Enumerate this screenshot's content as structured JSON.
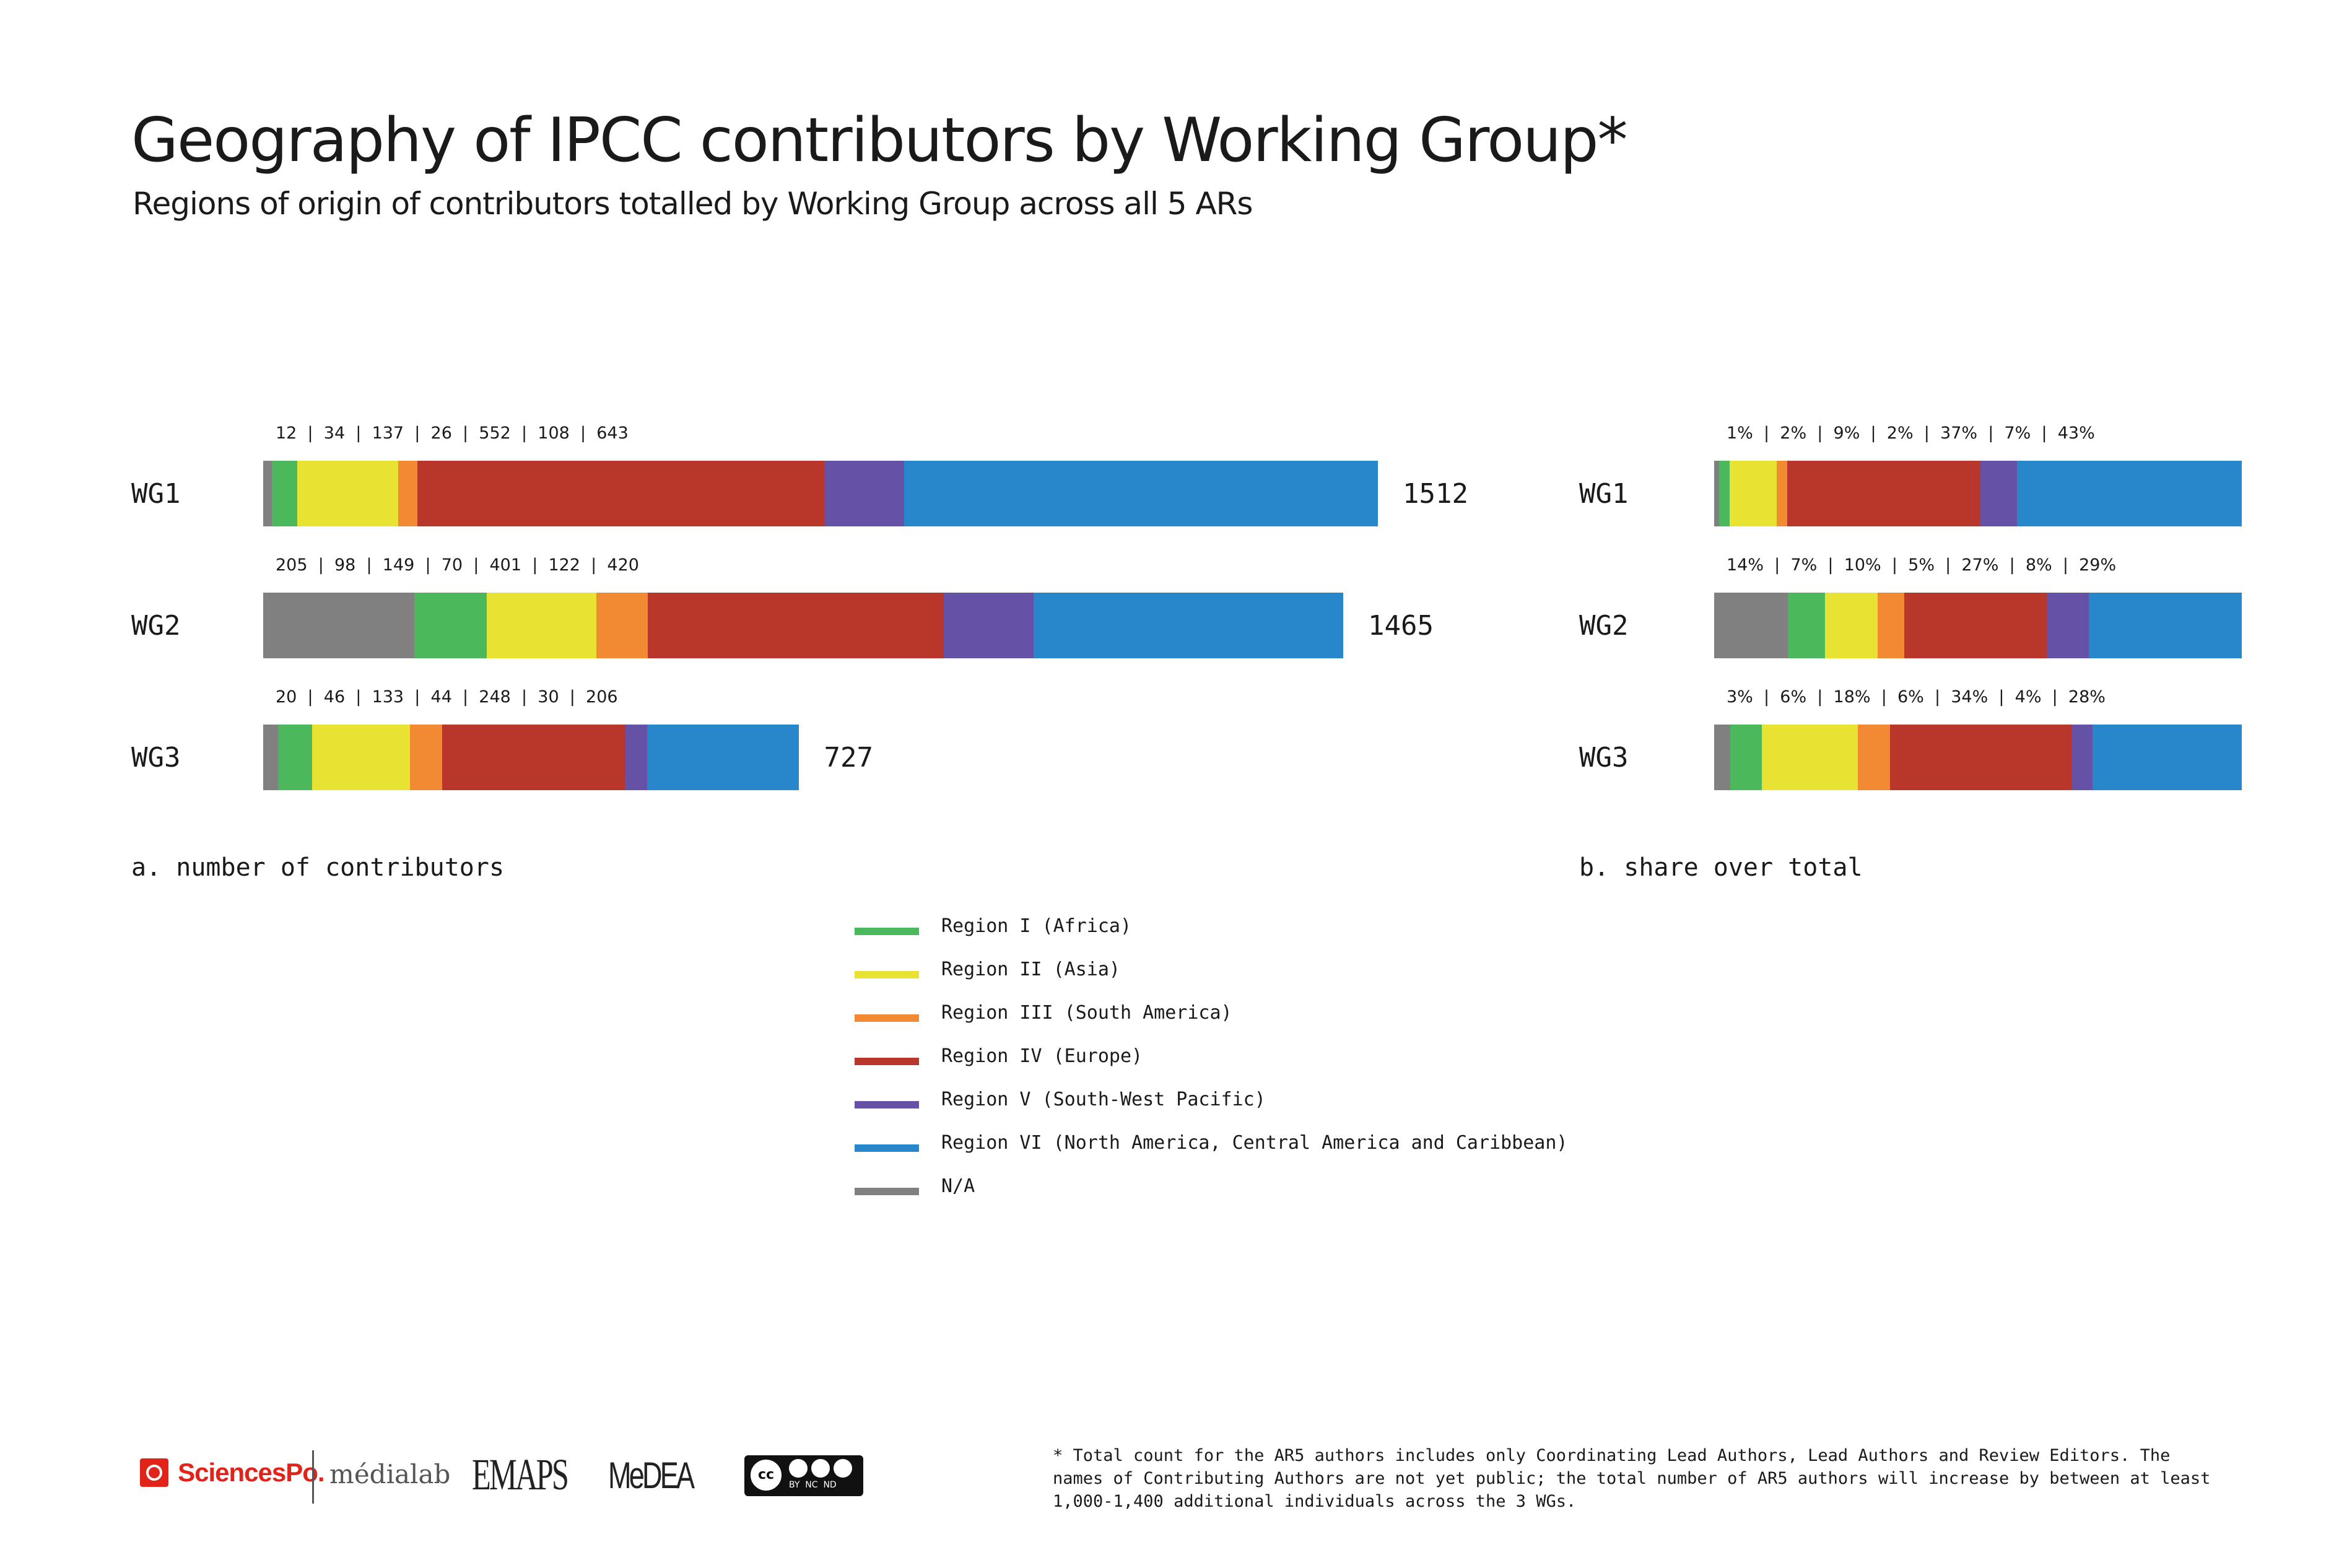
{
  "title": "Geography of IPCC contributors by Working Group*",
  "subtitle": "Regions of origin of contributors totalled by  Working Group across all 5 ARs",
  "colors": {
    "na": "#808080",
    "africa": "#4cb85c",
    "asia": "#e8e333",
    "south_america": "#f28a34",
    "europe": "#b9362a",
    "southwest_pacific": "#6551a5",
    "north_america": "#2886cb"
  },
  "chart_data": [
    {
      "type": "bar",
      "stacked": true,
      "orientation": "horizontal",
      "caption": "a. number of contributors",
      "categories": [
        "WG1",
        "WG2",
        "WG3"
      ],
      "series": [
        {
          "key": "na",
          "values": [
            12,
            205,
            20
          ]
        },
        {
          "key": "africa",
          "values": [
            34,
            98,
            46
          ]
        },
        {
          "key": "asia",
          "values": [
            137,
            149,
            133
          ]
        },
        {
          "key": "south_america",
          "values": [
            26,
            70,
            44
          ]
        },
        {
          "key": "europe",
          "values": [
            552,
            401,
            248
          ]
        },
        {
          "key": "southwest_pacific",
          "values": [
            108,
            122,
            30
          ]
        },
        {
          "key": "north_america",
          "values": [
            643,
            420,
            206
          ]
        }
      ],
      "value_labels": [
        "12  |  34  |  137  |  26  |  552  |  108  |  643",
        "205  |  98  |  149  |  70  |  401  |  122  |  420",
        "20  |  46  |  133  |  44  |  248  |  30  |  206"
      ],
      "totals": [
        "1512",
        "1465",
        "727"
      ],
      "xlim": [
        0,
        1512
      ]
    },
    {
      "type": "bar",
      "stacked": true,
      "orientation": "horizontal",
      "caption": "b. share over total",
      "categories": [
        "WG1",
        "WG2",
        "WG3"
      ],
      "series": [
        {
          "key": "na",
          "values": [
            1,
            14,
            3
          ]
        },
        {
          "key": "africa",
          "values": [
            2,
            7,
            6
          ]
        },
        {
          "key": "asia",
          "values": [
            9,
            10,
            18
          ]
        },
        {
          "key": "south_america",
          "values": [
            2,
            5,
            6
          ]
        },
        {
          "key": "europe",
          "values": [
            37,
            27,
            34
          ]
        },
        {
          "key": "southwest_pacific",
          "values": [
            7,
            8,
            4
          ]
        },
        {
          "key": "north_america",
          "values": [
            43,
            29,
            28
          ]
        }
      ],
      "value_labels": [
        "1%  |  2%  |  9%  |  2%  |  37%  |  7%  |  43%",
        "14%  |  7%  |  10%  |  5%  |  27%  |  8%  |  29%",
        "3%  |  6%  |  18%  |  6%  |  34%  |  4%  |  28%"
      ],
      "xlim": [
        0,
        100
      ]
    }
  ],
  "legend": [
    {
      "key": "africa",
      "label": "Region I (Africa)"
    },
    {
      "key": "asia",
      "label": "Region II (Asia)"
    },
    {
      "key": "south_america",
      "label": "Region III (South America)"
    },
    {
      "key": "europe",
      "label": "Region IV (Europe)"
    },
    {
      "key": "southwest_pacific",
      "label": "Region V (South-West Pacific)"
    },
    {
      "key": "north_america",
      "label": "Region VI (North America, Central America and Caribbean)"
    },
    {
      "key": "na",
      "label": "N/A"
    }
  ],
  "footnote": "* Total count for the AR5 authors includes only Coordinating Lead Authors, Lead Authors and Review Editors. The names of Contributing Authors are not yet public; the total number of AR5 authors will increase by between at least 1,000-1,400 additional individuals across the 3 WGs.",
  "logos": {
    "sciencespo": "SciencesPo.",
    "medialab": "médialab",
    "emaps": "EMAPS",
    "medea": "MeDEA",
    "cc_badge": "cc",
    "cc_terms": "BY  NC  ND"
  }
}
